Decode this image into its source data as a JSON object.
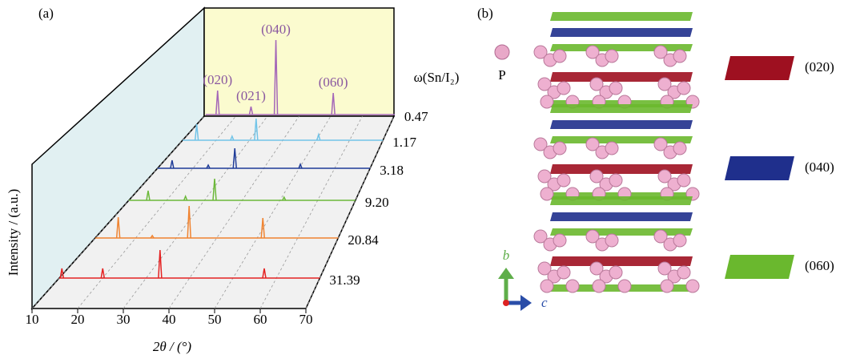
{
  "chart_data": {
    "type": "waterfall",
    "panel_label": "(a)",
    "x_label": "2θ / (°)",
    "y_label": "Intensity / (a.u.)",
    "z_label": "ω(Sn/I₂)",
    "xlim": [
      10,
      70
    ],
    "xticks": [
      10,
      20,
      30,
      40,
      50,
      60,
      70
    ],
    "peak_labels": [
      "(020)",
      "(021)",
      "(040)",
      "(060)"
    ],
    "series": [
      {
        "name": "0.47",
        "color": "#a467b8",
        "x": [
          13.8,
          24.4,
          32.3,
          50.5
        ],
        "values": [
          30,
          10,
          93,
          27
        ]
      },
      {
        "name": "1.17",
        "color": "#72c4e8",
        "x": [
          14.2,
          24.8,
          32.0,
          50.7
        ],
        "values": [
          20,
          5,
          27,
          7
        ]
      },
      {
        "name": "3.18",
        "color": "#1f3c98",
        "x": [
          14.1,
          24.3,
          31.8,
          50.3
        ],
        "values": [
          10,
          4,
          25,
          5
        ]
      },
      {
        "name": "9.20",
        "color": "#6cb83a",
        "x": [
          15.1,
          25.0,
          32.7,
          51.1
        ],
        "values": [
          12,
          5,
          27,
          4
        ]
      },
      {
        "name": "20.84",
        "color": "#f08330",
        "x": [
          15.7,
          24.1,
          33.2,
          51.4
        ],
        "values": [
          26,
          3,
          40,
          25
        ]
      },
      {
        "name": "31.39",
        "color": "#e42222",
        "x": [
          10.6,
          20.0,
          33.2,
          57.2
        ],
        "values": [
          12,
          12,
          35,
          12
        ]
      }
    ]
  },
  "diagram": {
    "panel_label": "(b)",
    "atom_label": "P",
    "planes": [
      {
        "label": "(020)",
        "color": "#9e1020"
      },
      {
        "label": "(040)",
        "color": "#1f2f8c"
      },
      {
        "label": "(060)",
        "color": "#6ab82e"
      }
    ],
    "axis_b": "b",
    "axis_c": "c"
  }
}
